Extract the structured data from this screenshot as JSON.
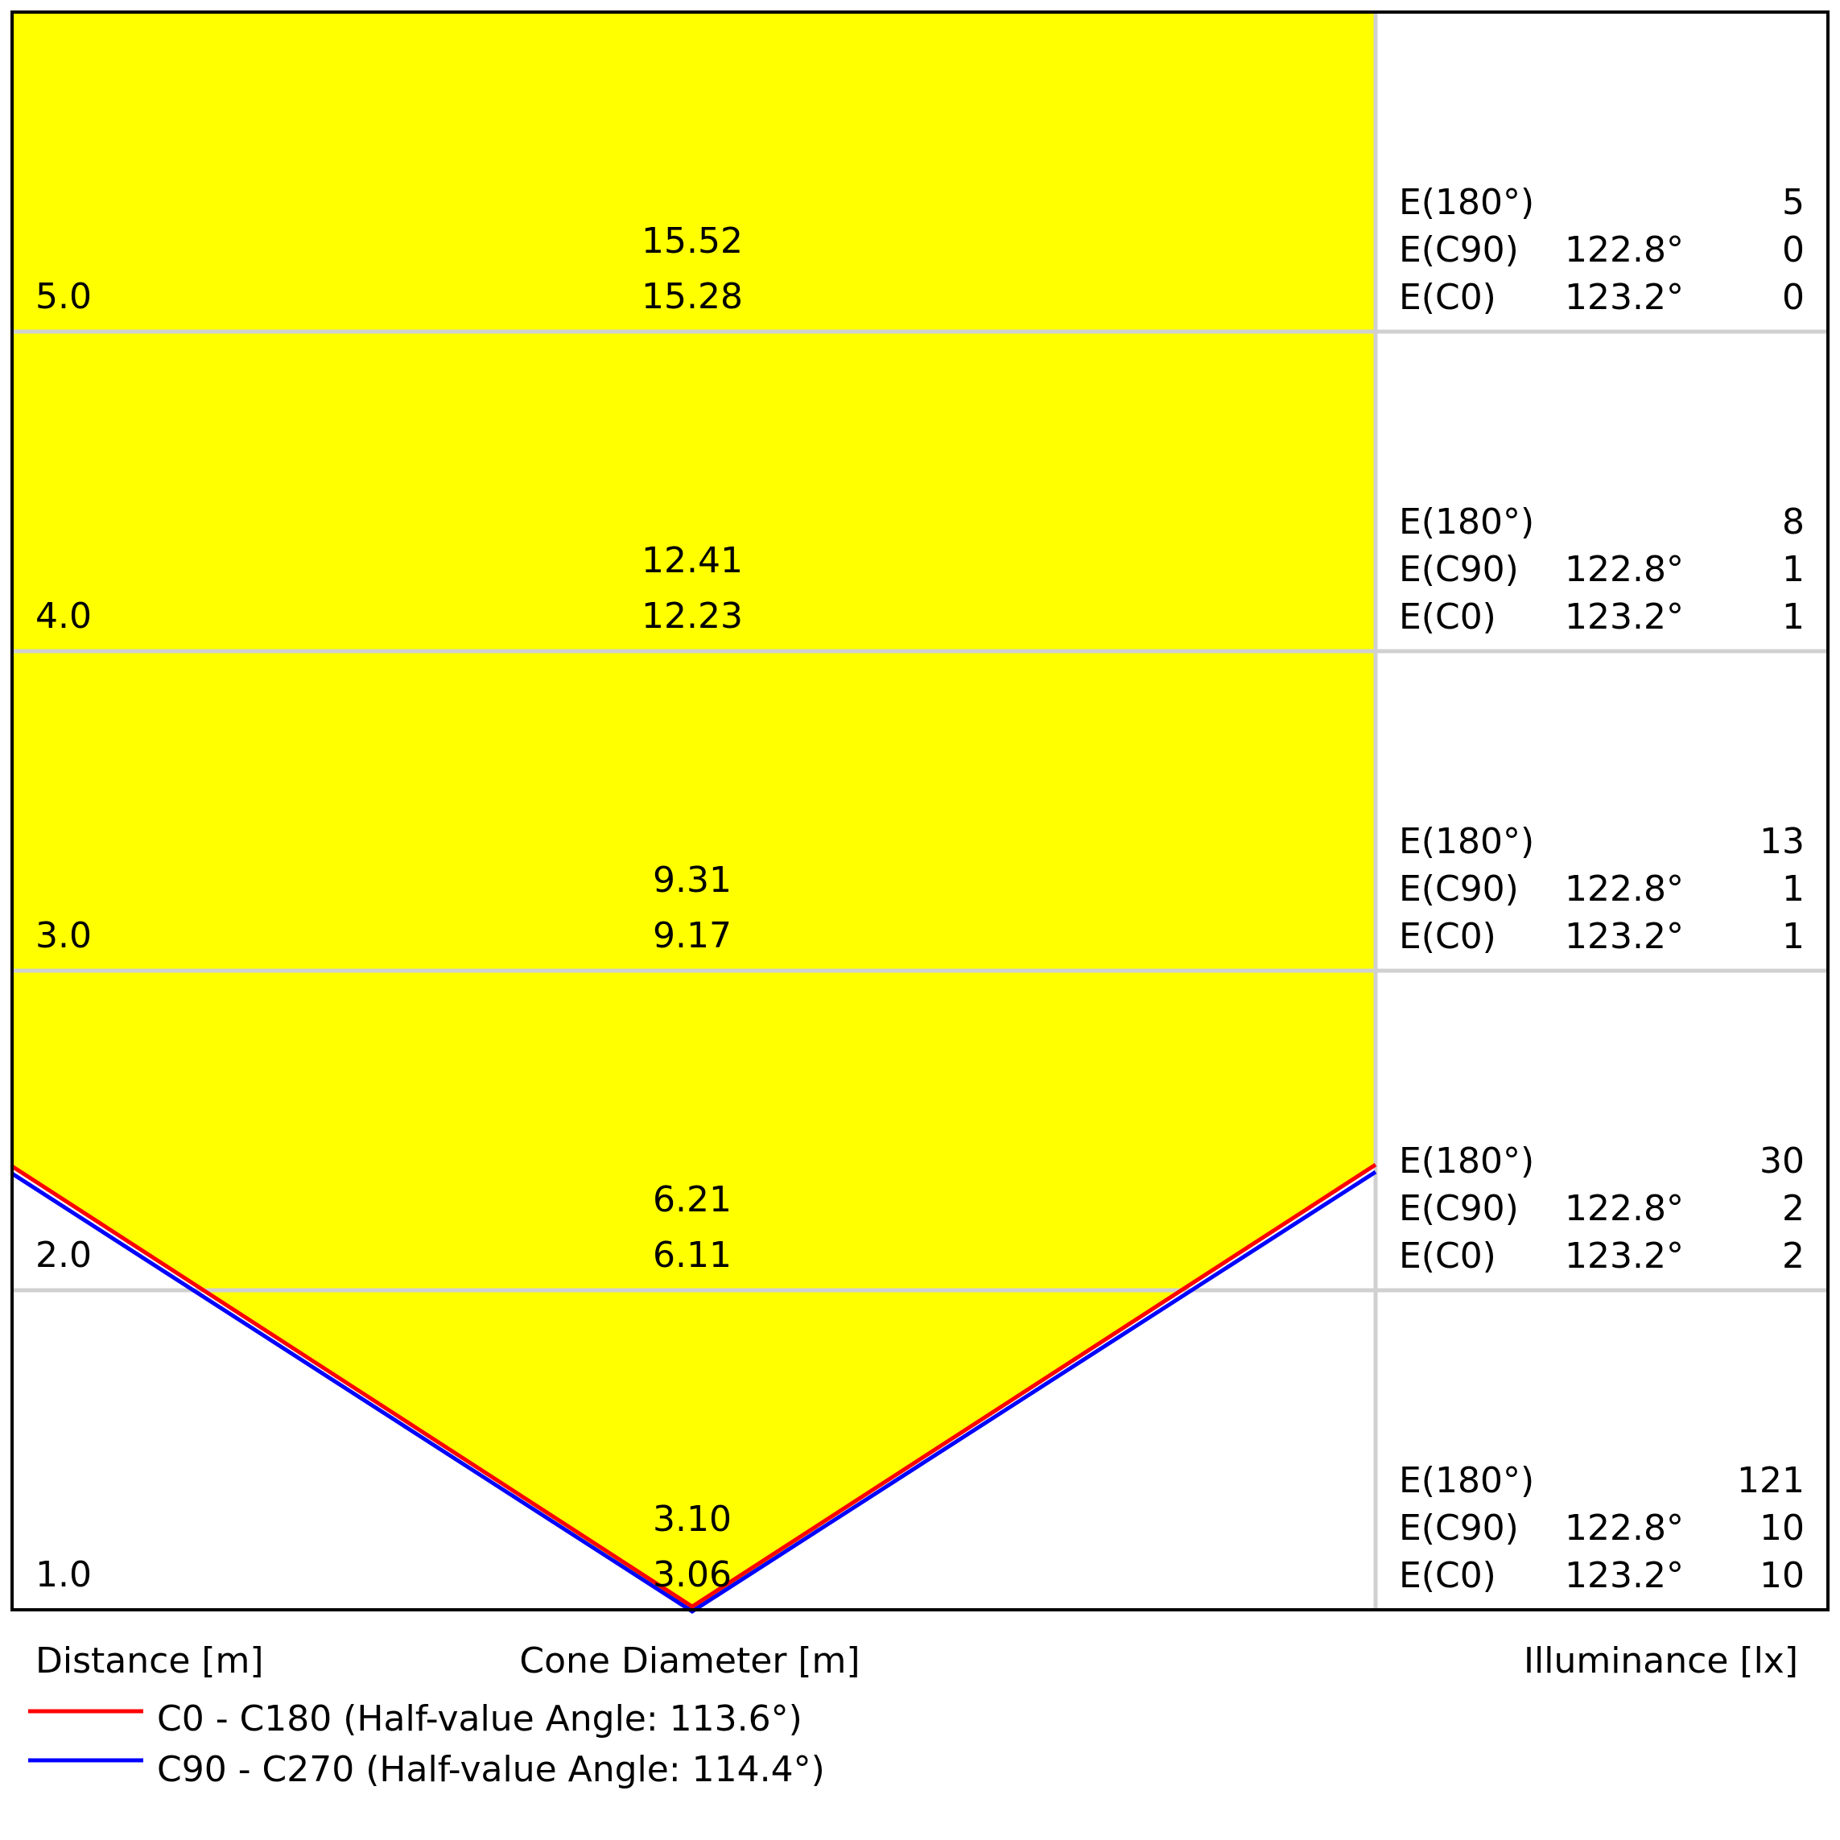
{
  "chart_data": {
    "type": "cone-diagram",
    "colors": {
      "fill": "#ffff00",
      "c0_c180": "#ff0000",
      "c90_c270": "#0000ff",
      "grid": "#d0d0d0",
      "frame": "#000000"
    },
    "xlabel_distance": "Distance [m]",
    "xlabel_diameter": "Cone Diameter [m]",
    "xlabel_illuminance": "Illuminance [lx]",
    "legend": [
      {
        "name": "C0 - C180 (Half-value Angle: 113.6°)",
        "color": "#ff0000"
      },
      {
        "name": "C90 - C270 (Half-value Angle: 114.4°)",
        "color": "#0000ff"
      }
    ],
    "rows": [
      {
        "distance": "5.0",
        "diam_c0": "15.52",
        "diam_c90": "15.28",
        "e180_label": "E(180°)",
        "e180": "5",
        "ec90_label": "E(C90)",
        "ec90_angle": "122.8°",
        "ec90": "0",
        "ec0_label": "E(C0)",
        "ec0_angle": "123.2°",
        "ec0": "0"
      },
      {
        "distance": "4.0",
        "diam_c0": "12.41",
        "diam_c90": "12.23",
        "e180_label": "E(180°)",
        "e180": "8",
        "ec90_label": "E(C90)",
        "ec90_angle": "122.8°",
        "ec90": "1",
        "ec0_label": "E(C0)",
        "ec0_angle": "123.2°",
        "ec0": "1"
      },
      {
        "distance": "3.0",
        "diam_c0": "9.31",
        "diam_c90": "9.17",
        "e180_label": "E(180°)",
        "e180": "13",
        "ec90_label": "E(C90)",
        "ec90_angle": "122.8°",
        "ec90": "1",
        "ec0_label": "E(C0)",
        "ec0_angle": "123.2°",
        "ec0": "1"
      },
      {
        "distance": "2.0",
        "diam_c0": "6.21",
        "diam_c90": "6.11",
        "e180_label": "E(180°)",
        "e180": "30",
        "ec90_label": "E(C90)",
        "ec90_angle": "122.8°",
        "ec90": "2",
        "ec0_label": "E(C0)",
        "ec0_angle": "123.2°",
        "ec0": "2"
      },
      {
        "distance": "1.0",
        "diam_c0": "3.10",
        "diam_c90": "3.06",
        "e180_label": "E(180°)",
        "e180": "121",
        "ec90_label": "E(C90)",
        "ec90_angle": "122.8°",
        "ec90": "10",
        "ec0_label": "E(C0)",
        "ec0_angle": "123.2°",
        "ec0": "10"
      }
    ]
  }
}
